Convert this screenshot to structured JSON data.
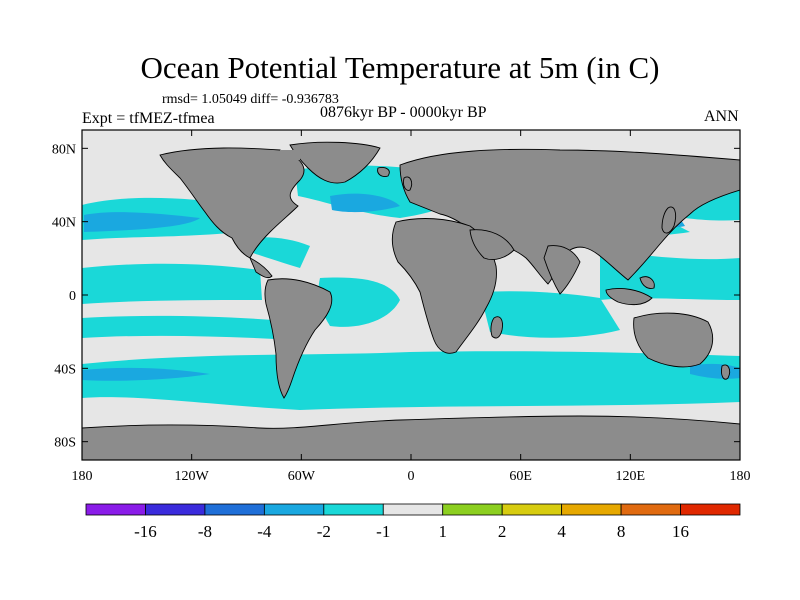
{
  "title": "Ocean Potential Temperature at 5m (in C)",
  "stats": "rmsd= 1.05049 diff= -0.936783",
  "experiment": "Expt = tfMEZ-tfmea",
  "period": "0876kyr BP - 0000kyr BP",
  "season": "ANN",
  "lat_ticks": [
    {
      "label": "80N",
      "lat": 80
    },
    {
      "label": "40N",
      "lat": 40
    },
    {
      "label": "0",
      "lat": 0
    },
    {
      "label": "40S",
      "lat": -40
    },
    {
      "label": "80S",
      "lat": -80
    }
  ],
  "lon_ticks": [
    {
      "label": "180",
      "lon": -180
    },
    {
      "label": "120W",
      "lon": -120
    },
    {
      "label": "60W",
      "lon": -60
    },
    {
      "label": "0",
      "lon": 0
    },
    {
      "label": "60E",
      "lon": 60
    },
    {
      "label": "120E",
      "lon": 120
    },
    {
      "label": "180",
      "lon": 180
    }
  ],
  "colorbar": {
    "colors": [
      "#8a1ce8",
      "#3a2bdc",
      "#1f6fd8",
      "#1aa8e0",
      "#1ad8d8",
      "#e6e6e6",
      "#8ccf20",
      "#d7cc10",
      "#e6a800",
      "#e06a10",
      "#e02800"
    ],
    "labels": [
      "-16",
      "-8",
      "-4",
      "-2",
      "-1",
      "1",
      "2",
      "4",
      "8",
      "16"
    ]
  },
  "colors": {
    "land": "#8c8c8c",
    "neutral": "#e6e6e6",
    "cool": "#1ad8d8",
    "cooler": "#1aa8e0"
  }
}
